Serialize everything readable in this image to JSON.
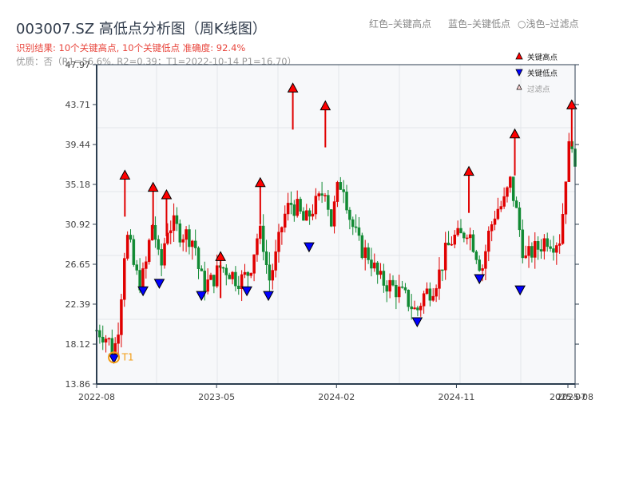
{
  "header": {
    "title": "003007.SZ 高低点分析图（周K线图）",
    "result_line": "识别结果: 10个关键高点, 10个关键低点   准确度: 92.4%",
    "quality_line": "优质：否（R1=56.6%, R2=0.39；T1=2022-10-14 P1=16.70）"
  },
  "top_legend": {
    "red": "红色–关键高点",
    "blue": "蓝色–关键低点",
    "light": "○浅色–过滤点"
  },
  "legend": {
    "high": "关键高点",
    "low": "关键低点",
    "filtered": "过滤点"
  },
  "annotation": {
    "label": "T1",
    "color": "#f39c12"
  },
  "colors": {
    "up": "#e00000",
    "down": "#118a33",
    "high_marker": "#ff0000",
    "low_marker": "#0000ff",
    "axis": "#2c3e50",
    "grid": "#e3e6ea",
    "plot_bg": "#f7f8fa"
  },
  "chart_data": {
    "type": "candlestick",
    "title": "003007.SZ 高低点分析图（周K线图）",
    "ylim": [
      13.86,
      47.97
    ],
    "yticks": [
      13.86,
      18.12,
      22.39,
      26.65,
      30.92,
      35.18,
      39.44,
      43.71,
      47.97
    ],
    "ytick_labels": [
      "13.86",
      "18.12",
      "22.39",
      "26.65",
      "30.92",
      "35.18",
      "39.44",
      "43.71",
      "47.97"
    ],
    "xticks": [
      {
        "label": "2022-08",
        "pos": 0.0
      },
      {
        "label": "2023-05",
        "pos": 0.2507
      },
      {
        "label": "2024-02",
        "pos": 0.5013
      },
      {
        "label": "2024-11",
        "pos": 0.752
      },
      {
        "label": "2025-07",
        "pos": 0.985
      },
      {
        "label": "2025-08",
        "pos": 1.0
      }
    ],
    "grid": true,
    "key_highs": [
      {
        "x": 0.059,
        "price": 36.0
      },
      {
        "x": 0.118,
        "price": 34.7
      },
      {
        "x": 0.146,
        "price": 33.9
      },
      {
        "x": 0.259,
        "price": 27.3
      },
      {
        "x": 0.342,
        "price": 35.2
      },
      {
        "x": 0.41,
        "price": 45.3
      },
      {
        "x": 0.478,
        "price": 43.4
      },
      {
        "x": 0.778,
        "price": 36.4
      },
      {
        "x": 0.874,
        "price": 40.4
      },
      {
        "x": 0.993,
        "price": 43.5
      }
    ],
    "key_lows": [
      {
        "x": 0.036,
        "price": 16.7
      },
      {
        "x": 0.097,
        "price": 23.9
      },
      {
        "x": 0.131,
        "price": 24.7
      },
      {
        "x": 0.219,
        "price": 23.4
      },
      {
        "x": 0.314,
        "price": 23.9
      },
      {
        "x": 0.359,
        "price": 23.4
      },
      {
        "x": 0.444,
        "price": 28.6
      },
      {
        "x": 0.67,
        "price": 20.6
      },
      {
        "x": 0.8,
        "price": 25.2
      },
      {
        "x": 0.885,
        "price": 24.0
      }
    ],
    "path": [
      [
        0.0,
        19.6
      ],
      [
        0.012,
        19.3
      ],
      [
        0.024,
        18.6
      ],
      [
        0.036,
        17.2
      ],
      [
        0.048,
        21.0
      ],
      [
        0.056,
        27.0
      ],
      [
        0.062,
        29.8
      ],
      [
        0.07,
        28.5
      ],
      [
        0.08,
        25.8
      ],
      [
        0.09,
        24.8
      ],
      [
        0.1,
        25.6
      ],
      [
        0.11,
        29.0
      ],
      [
        0.118,
        31.5
      ],
      [
        0.126,
        28.0
      ],
      [
        0.134,
        26.0
      ],
      [
        0.146,
        30.5
      ],
      [
        0.16,
        30.9
      ],
      [
        0.175,
        30.0
      ],
      [
        0.19,
        29.8
      ],
      [
        0.205,
        29.0
      ],
      [
        0.215,
        25.5
      ],
      [
        0.225,
        24.5
      ],
      [
        0.24,
        24.8
      ],
      [
        0.259,
        26.4
      ],
      [
        0.275,
        26.0
      ],
      [
        0.29,
        25.2
      ],
      [
        0.305,
        25.0
      ],
      [
        0.32,
        26.0
      ],
      [
        0.335,
        29.5
      ],
      [
        0.345,
        30.0
      ],
      [
        0.36,
        24.8
      ],
      [
        0.375,
        27.5
      ],
      [
        0.39,
        31.5
      ],
      [
        0.405,
        33.2
      ],
      [
        0.42,
        32.5
      ],
      [
        0.435,
        31.0
      ],
      [
        0.45,
        32.5
      ],
      [
        0.465,
        33.5
      ],
      [
        0.478,
        35.0
      ],
      [
        0.49,
        31.0
      ],
      [
        0.505,
        35.0
      ],
      [
        0.515,
        35.5
      ],
      [
        0.53,
        31.5
      ],
      [
        0.55,
        28.5
      ],
      [
        0.57,
        27.5
      ],
      [
        0.59,
        25.0
      ],
      [
        0.61,
        24.5
      ],
      [
        0.63,
        23.8
      ],
      [
        0.65,
        22.8
      ],
      [
        0.668,
        21.5
      ],
      [
        0.685,
        23.5
      ],
      [
        0.7,
        24.0
      ],
      [
        0.715,
        25.5
      ],
      [
        0.73,
        28.0
      ],
      [
        0.745,
        29.5
      ],
      [
        0.76,
        29.5
      ],
      [
        0.775,
        30.5
      ],
      [
        0.79,
        28.5
      ],
      [
        0.805,
        26.0
      ],
      [
        0.82,
        30.0
      ],
      [
        0.835,
        32.5
      ],
      [
        0.85,
        33.0
      ],
      [
        0.865,
        35.5
      ],
      [
        0.88,
        31.5
      ],
      [
        0.895,
        27.0
      ],
      [
        0.91,
        28.0
      ],
      [
        0.925,
        28.5
      ],
      [
        0.94,
        29.5
      ],
      [
        0.955,
        29.0
      ],
      [
        0.97,
        29.5
      ],
      [
        0.98,
        36.0
      ],
      [
        0.992,
        41.0
      ],
      [
        1.0,
        36.0
      ]
    ]
  }
}
